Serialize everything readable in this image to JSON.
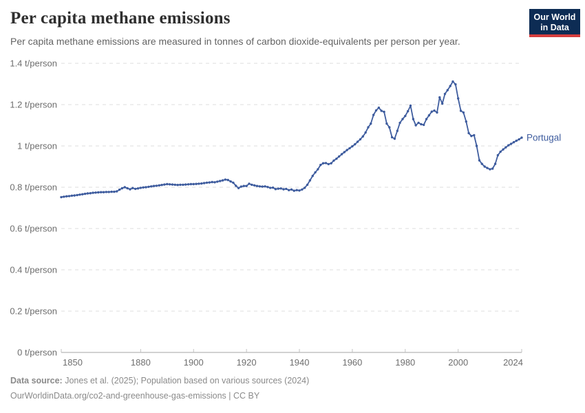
{
  "header": {
    "title": "Per capita methane emissions",
    "subtitle": "Per capita methane emissions are measured in tonnes of carbon dioxide-equivalents per person per year.",
    "logo": {
      "line1": "Our World",
      "line2": "in Data"
    }
  },
  "footer": {
    "source_label": "Data source:",
    "source_text": " Jones et al. (2025); Population based on various sources (2024)",
    "link_line": "OurWorldinData.org/co2-and-greenhouse-gas-emissions | CC BY"
  },
  "colors": {
    "line": "#3e5c9e",
    "entity_label": "#3e5c9e",
    "grid": "#dcdcdc",
    "axis": "#a3a3a3",
    "tick_mark": "#c2c2c2",
    "tick_text": "#6e6e6e",
    "title": "#2f2f2f",
    "subtitle": "#636363",
    "footer_text": "#8a8a8a",
    "logo_bg": "#0d2c54",
    "logo_bar": "#d63e3e"
  },
  "chart_data": {
    "type": "line",
    "title": "Per capita methane emissions",
    "unit": "t/person",
    "xlim": [
      1850,
      2024
    ],
    "ylim": [
      0,
      1.4
    ],
    "grid": true,
    "legend_position": "end-of-line",
    "xticks": [
      {
        "value": 1850,
        "label": "1850"
      },
      {
        "value": 1880,
        "label": "1880"
      },
      {
        "value": 1900,
        "label": "1900"
      },
      {
        "value": 1920,
        "label": "1920"
      },
      {
        "value": 1940,
        "label": "1940"
      },
      {
        "value": 1960,
        "label": "1960"
      },
      {
        "value": 1980,
        "label": "1980"
      },
      {
        "value": 2000,
        "label": "2000"
      },
      {
        "value": 2024,
        "label": "2024"
      }
    ],
    "yticks": [
      {
        "value": 0,
        "label": "0 t/person"
      },
      {
        "value": 0.2,
        "label": "0.2 t/person"
      },
      {
        "value": 0.4,
        "label": "0.4 t/person"
      },
      {
        "value": 0.6,
        "label": "0.6 t/person"
      },
      {
        "value": 0.8,
        "label": "0.8 t/person"
      },
      {
        "value": 1,
        "label": "1 t/person"
      },
      {
        "value": 1.2,
        "label": "1.2 t/person"
      },
      {
        "value": 1.4,
        "label": "1.4 t/person"
      }
    ],
    "years_start": 1850,
    "years_step": 1,
    "series": [
      {
        "name": "Portugal",
        "color": "#3e5c9e",
        "values": [
          0.752,
          0.754,
          0.756,
          0.757,
          0.759,
          0.76,
          0.762,
          0.764,
          0.766,
          0.768,
          0.77,
          0.771,
          0.773,
          0.774,
          0.775,
          0.776,
          0.776,
          0.777,
          0.777,
          0.778,
          0.778,
          0.78,
          0.788,
          0.795,
          0.8,
          0.795,
          0.79,
          0.796,
          0.792,
          0.794,
          0.797,
          0.799,
          0.8,
          0.802,
          0.804,
          0.806,
          0.807,
          0.809,
          0.811,
          0.813,
          0.815,
          0.814,
          0.813,
          0.812,
          0.811,
          0.812,
          0.812,
          0.813,
          0.814,
          0.815,
          0.815,
          0.816,
          0.817,
          0.818,
          0.82,
          0.822,
          0.823,
          0.825,
          0.824,
          0.827,
          0.83,
          0.833,
          0.837,
          0.835,
          0.828,
          0.822,
          0.807,
          0.796,
          0.803,
          0.806,
          0.806,
          0.817,
          0.812,
          0.809,
          0.806,
          0.804,
          0.803,
          0.804,
          0.801,
          0.797,
          0.798,
          0.791,
          0.793,
          0.794,
          0.79,
          0.792,
          0.786,
          0.789,
          0.783,
          0.786,
          0.784,
          0.789,
          0.797,
          0.812,
          0.833,
          0.855,
          0.872,
          0.887,
          0.908,
          0.916,
          0.917,
          0.912,
          0.916,
          0.929,
          0.938,
          0.949,
          0.96,
          0.97,
          0.98,
          0.989,
          0.998,
          1.008,
          1.02,
          1.032,
          1.046,
          1.065,
          1.09,
          1.108,
          1.15,
          1.172,
          1.185,
          1.17,
          1.165,
          1.108,
          1.09,
          1.042,
          1.035,
          1.073,
          1.112,
          1.13,
          1.145,
          1.168,
          1.195,
          1.13,
          1.1,
          1.112,
          1.105,
          1.102,
          1.13,
          1.148,
          1.166,
          1.171,
          1.162,
          1.235,
          1.205,
          1.252,
          1.27,
          1.29,
          1.312,
          1.298,
          1.23,
          1.17,
          1.162,
          1.118,
          1.062,
          1.048,
          1.052,
          1.0,
          0.93,
          0.913,
          0.9,
          0.893,
          0.887,
          0.89,
          0.913,
          0.955,
          0.972,
          0.983,
          0.993,
          1.003,
          1.01,
          1.018,
          1.025,
          1.032,
          1.04
        ]
      }
    ]
  }
}
